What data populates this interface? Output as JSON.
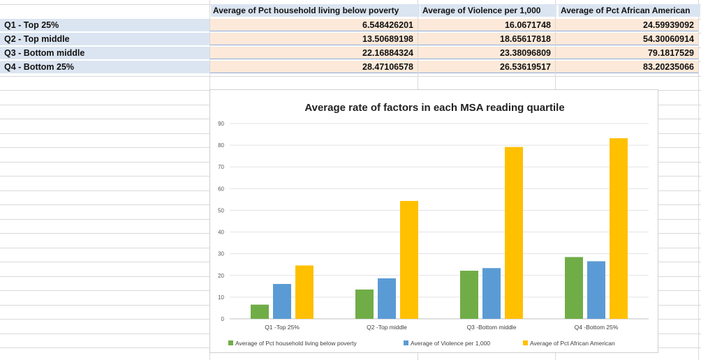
{
  "table": {
    "headers": [
      "Average of Pct household living below poverty",
      "Average of Violence per 1,000",
      "Average of Pct African American"
    ],
    "rows": [
      {
        "label": "Q1 - Top 25%",
        "values": [
          "6.548426201",
          "16.0671748",
          "24.59939092"
        ]
      },
      {
        "label": "Q2 - Top middle",
        "values": [
          "13.50689198",
          "18.65617818",
          "54.30060914"
        ]
      },
      {
        "label": "Q3 - Bottom middle",
        "values": [
          "22.16884324",
          "23.38096809",
          "79.1817529"
        ]
      },
      {
        "label": "Q4 - Bottom 25%",
        "values": [
          "28.47106578",
          "26.53619517",
          "83.20235066"
        ]
      }
    ]
  },
  "chart_data": {
    "type": "bar",
    "title": "Average rate of factors in each MSA reading quartile",
    "categories": [
      "Q1 -Top 25%",
      "Q2 -Top middle",
      "Q3 -Bottom middle",
      "Q4 -Bottom 25%"
    ],
    "series": [
      {
        "name": "Average of Pct household living below poverty",
        "color": "#70ad47",
        "values": [
          6.548426201,
          13.50689198,
          22.16884324,
          28.47106578
        ]
      },
      {
        "name": "Average of Violence per 1,000",
        "color": "#5b9bd5",
        "values": [
          16.0671748,
          18.65617818,
          23.38096809,
          26.53619517
        ]
      },
      {
        "name": "Average of Pct African American",
        "color": "#ffc000",
        "values": [
          24.59939092,
          54.30060914,
          79.1817529,
          83.20235066
        ]
      }
    ],
    "ylim": [
      0,
      90
    ],
    "yticks": [
      0,
      10,
      20,
      30,
      40,
      50,
      60,
      70,
      80,
      90
    ],
    "grid": true,
    "legend": "bottom"
  }
}
